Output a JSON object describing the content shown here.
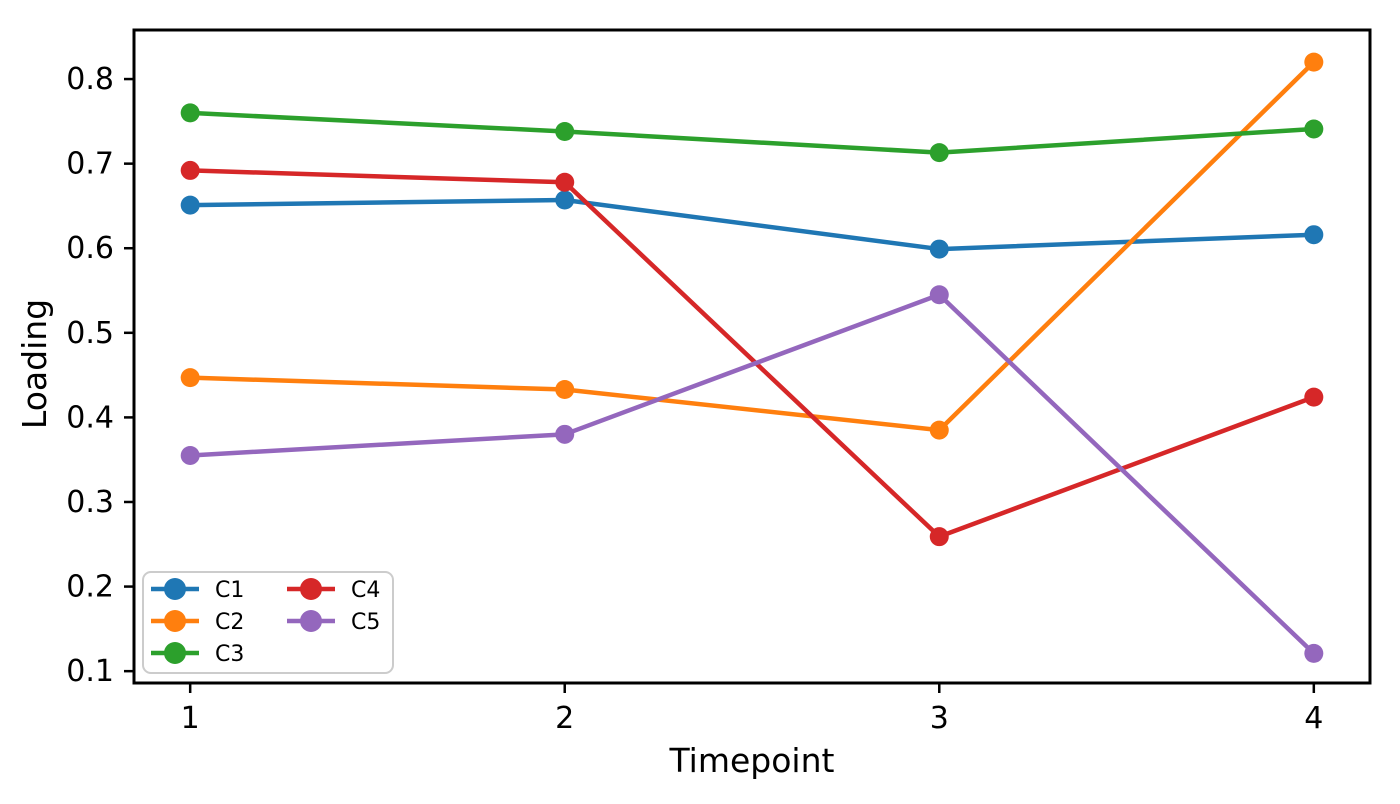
{
  "chart_data": {
    "type": "line",
    "title": "",
    "xlabel": "Timepoint",
    "ylabel": "Loading",
    "x": [
      1,
      2,
      3,
      4
    ],
    "xtick_labels": [
      "1",
      "2",
      "3",
      "4"
    ],
    "ytick_values": [
      0.1,
      0.2,
      0.3,
      0.4,
      0.5,
      0.6,
      0.7,
      0.8
    ],
    "ytick_labels": [
      "0.1",
      "0.2",
      "0.3",
      "0.4",
      "0.5",
      "0.6",
      "0.7",
      "0.8"
    ],
    "xlim": [
      0.85,
      4.15
    ],
    "ylim": [
      0.086,
      0.858
    ],
    "grid": false,
    "legend": {
      "position": "lower-left",
      "columns": 2
    },
    "series": [
      {
        "name": "C1",
        "color": "#1f77b4",
        "values": [
          0.651,
          0.657,
          0.599,
          0.616
        ]
      },
      {
        "name": "C2",
        "color": "#ff7f0e",
        "values": [
          0.447,
          0.433,
          0.385,
          0.82
        ]
      },
      {
        "name": "C3",
        "color": "#2ca02c",
        "values": [
          0.76,
          0.738,
          0.713,
          0.741
        ]
      },
      {
        "name": "C4",
        "color": "#d62728",
        "values": [
          0.692,
          0.678,
          0.259,
          0.424
        ]
      },
      {
        "name": "C5",
        "color": "#9467bd",
        "values": [
          0.355,
          0.38,
          0.545,
          0.121
        ]
      }
    ]
  }
}
